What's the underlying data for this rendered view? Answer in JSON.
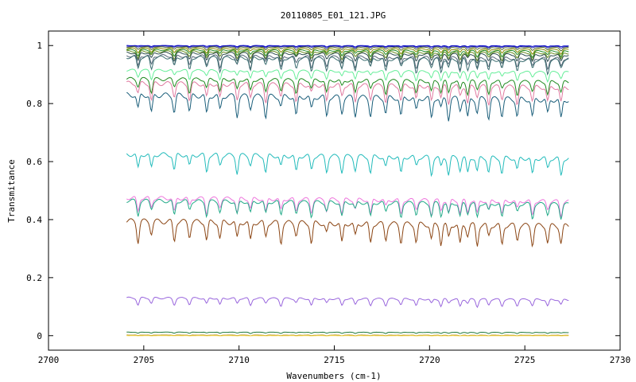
{
  "chart_data": {
    "type": "line",
    "title": "20110805_E01_121.JPG",
    "xlabel": "Wavenumbers (cm-1)",
    "ylabel": "Transmitance",
    "xlim": [
      2700,
      2730
    ],
    "ylim": [
      -0.05,
      1.05
    ],
    "xticks": [
      2700,
      2705,
      2710,
      2715,
      2720,
      2725,
      2730
    ],
    "yticks": [
      0,
      0.2,
      0.4,
      0.6,
      0.8,
      1
    ],
    "ytick_labels": [
      "0",
      "0.2",
      "0.4",
      "0.6",
      "0.8",
      "1"
    ],
    "x_range": [
      2704.1,
      2727.3
    ],
    "grid": false,
    "legend": "none",
    "absorption_lines": [
      2704.7,
      2705.4,
      2706.6,
      2707.4,
      2708.3,
      2709.0,
      2709.9,
      2710.6,
      2711.4,
      2712.2,
      2713.0,
      2713.8,
      2714.6,
      2715.4,
      2716.1,
      2716.9,
      2717.7,
      2718.5,
      2719.3,
      2720.1,
      2720.6,
      2721.0,
      2721.6,
      2722.0,
      2722.5,
      2723.1,
      2723.8,
      2724.6,
      2725.4,
      2726.2,
      2726.9
    ],
    "series": [
      {
        "baseline": 1.0,
        "depth": 0.004,
        "color": "#0000cc"
      },
      {
        "baseline": 0.998,
        "depth": 0.006,
        "color": "#2222aa"
      },
      {
        "baseline": 0.995,
        "depth": 0.01,
        "color": "#556b2f"
      },
      {
        "baseline": 0.99,
        "depth": 0.015,
        "color": "#8b8b00"
      },
      {
        "baseline": 0.985,
        "depth": 0.02,
        "color": "#228b22"
      },
      {
        "baseline": 0.98,
        "depth": 0.025,
        "color": "#6b8e23"
      },
      {
        "baseline": 0.975,
        "depth": 0.03,
        "color": "#2f4f4f"
      },
      {
        "baseline": 0.965,
        "depth": 0.04,
        "color": "#556677"
      },
      {
        "baseline": 0.96,
        "depth": 0.045,
        "color": "#3c6e71"
      },
      {
        "baseline": 0.915,
        "depth": 0.03,
        "color": "#66ee99"
      },
      {
        "baseline": 0.885,
        "depth": 0.045,
        "color": "#1f8a1f"
      },
      {
        "baseline": 0.87,
        "depth": 0.06,
        "color": "#e07aa0"
      },
      {
        "baseline": 0.83,
        "depth": 0.07,
        "color": "#1a5e7a"
      },
      {
        "baseline": 0.625,
        "depth": 0.06,
        "color": "#22bbbb"
      },
      {
        "baseline": 0.475,
        "depth": 0.05,
        "color": "#ee77dd"
      },
      {
        "baseline": 0.465,
        "depth": 0.05,
        "color": "#22aa88"
      },
      {
        "baseline": 0.395,
        "depth": 0.07,
        "color": "#8b4513"
      },
      {
        "baseline": 0.13,
        "depth": 0.025,
        "color": "#9966dd"
      },
      {
        "baseline": 0.012,
        "depth": 0.004,
        "color": "#1e7a3c"
      },
      {
        "baseline": 0.002,
        "depth": 0.002,
        "color": "#aa8800"
      },
      {
        "baseline": 0.0,
        "depth": 0.001,
        "color": "#ffe060"
      }
    ]
  }
}
